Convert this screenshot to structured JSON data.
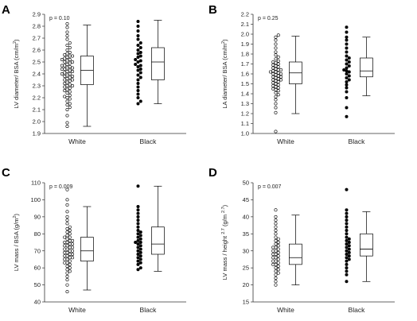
{
  "chart_data": [
    {
      "panel": "A",
      "type": "scatter",
      "ylabel_main": "LV diameter/ BSA (cm/m",
      "ylabel_sup": "2",
      "ylabel_end": ")",
      "pvalue": "p = 0.10",
      "categories": [
        "White",
        "Black"
      ],
      "ylim": [
        1.9,
        2.9
      ],
      "yticks": [
        "1.9",
        "2.0",
        "2.1",
        "2.2",
        "2.3",
        "2.4",
        "2.5",
        "2.6",
        "2.7",
        "2.8",
        "2.9"
      ],
      "series": [
        {
          "group": "White",
          "marker": "open",
          "values": [
            1.96,
            1.99,
            2.05,
            2.1,
            2.12,
            2.14,
            2.15,
            2.17,
            2.19,
            2.2,
            2.21,
            2.22,
            2.24,
            2.25,
            2.26,
            2.27,
            2.28,
            2.29,
            2.3,
            2.3,
            2.31,
            2.32,
            2.33,
            2.34,
            2.35,
            2.35,
            2.36,
            2.37,
            2.38,
            2.38,
            2.39,
            2.4,
            2.4,
            2.41,
            2.42,
            2.42,
            2.43,
            2.44,
            2.44,
            2.45,
            2.45,
            2.46,
            2.47,
            2.47,
            2.48,
            2.49,
            2.5,
            2.5,
            2.51,
            2.52,
            2.52,
            2.53,
            2.54,
            2.55,
            2.55,
            2.56,
            2.57,
            2.58,
            2.6,
            2.62,
            2.64,
            2.66,
            2.69,
            2.72,
            2.75,
            2.79,
            2.82
          ],
          "box": {
            "min": 1.96,
            "q1": 2.31,
            "median": 2.43,
            "q3": 2.55,
            "max": 2.81
          }
        },
        {
          "group": "Black",
          "marker": "filled",
          "values": [
            2.15,
            2.17,
            2.2,
            2.23,
            2.26,
            2.29,
            2.32,
            2.35,
            2.37,
            2.39,
            2.41,
            2.43,
            2.44,
            2.46,
            2.47,
            2.48,
            2.5,
            2.51,
            2.52,
            2.54,
            2.55,
            2.57,
            2.58,
            2.6,
            2.62,
            2.64,
            2.66,
            2.69,
            2.72,
            2.76,
            2.8,
            2.84
          ],
          "box": {
            "min": 2.15,
            "q1": 2.35,
            "median": 2.5,
            "q3": 2.62,
            "max": 2.85
          }
        }
      ]
    },
    {
      "panel": "B",
      "type": "scatter",
      "ylabel_main": "LA diameter/ BSA (cm/m",
      "ylabel_sup": "2",
      "ylabel_end": ")",
      "pvalue": "p = 0.25",
      "categories": [
        "White",
        "Black"
      ],
      "ylim": [
        1.0,
        2.2
      ],
      "yticks": [
        "1.0",
        "1.1",
        "1.2",
        "1.3",
        "1.4",
        "1.5",
        "1.6",
        "1.7",
        "1.8",
        "1.9",
        "2.0",
        "2.1",
        "2.2"
      ],
      "series": [
        {
          "group": "White",
          "marker": "open",
          "values": [
            1.02,
            1.21,
            1.26,
            1.3,
            1.34,
            1.37,
            1.39,
            1.41,
            1.43,
            1.44,
            1.45,
            1.46,
            1.47,
            1.48,
            1.49,
            1.5,
            1.51,
            1.52,
            1.53,
            1.54,
            1.54,
            1.55,
            1.56,
            1.57,
            1.57,
            1.58,
            1.59,
            1.6,
            1.6,
            1.61,
            1.62,
            1.62,
            1.63,
            1.64,
            1.64,
            1.65,
            1.66,
            1.67,
            1.68,
            1.69,
            1.7,
            1.71,
            1.72,
            1.73,
            1.75,
            1.77,
            1.79,
            1.82,
            1.86,
            1.9,
            1.94,
            1.97,
            1.99
          ],
          "box": {
            "min": 1.2,
            "q1": 1.5,
            "median": 1.61,
            "q3": 1.72,
            "max": 1.98
          }
        },
        {
          "group": "Black",
          "marker": "filled",
          "values": [
            1.17,
            1.26,
            1.36,
            1.42,
            1.46,
            1.49,
            1.52,
            1.54,
            1.56,
            1.58,
            1.6,
            1.62,
            1.63,
            1.64,
            1.66,
            1.68,
            1.7,
            1.72,
            1.74,
            1.76,
            1.78,
            1.82,
            1.86,
            1.9,
            1.94,
            1.97,
            2.02,
            2.07
          ],
          "box": {
            "min": 1.38,
            "q1": 1.57,
            "median": 1.63,
            "q3": 1.76,
            "max": 1.97
          }
        }
      ]
    },
    {
      "panel": "C",
      "type": "scatter",
      "ylabel_main": "LV mass / BSA (g/m",
      "ylabel_sup": "2",
      "ylabel_end": ")",
      "pvalue": "p = 0.009",
      "categories": [
        "White",
        "Black"
      ],
      "ylim": [
        40,
        110
      ],
      "yticks": [
        "40",
        "50",
        "60",
        "70",
        "80",
        "90",
        "100",
        "110"
      ],
      "series": [
        {
          "group": "White",
          "marker": "open",
          "values": [
            46,
            50,
            53,
            55,
            57,
            58,
            59,
            60,
            61,
            62,
            63,
            63,
            64,
            65,
            65,
            66,
            66,
            67,
            67,
            68,
            68,
            69,
            69,
            70,
            70,
            71,
            71,
            72,
            72,
            73,
            73,
            74,
            74,
            75,
            75,
            76,
            76,
            77,
            78,
            78,
            79,
            80,
            81,
            82,
            83,
            84,
            86,
            88,
            90,
            93,
            97,
            100,
            106
          ],
          "box": {
            "min": 47,
            "q1": 64,
            "median": 70,
            "q3": 78,
            "max": 96
          }
        },
        {
          "group": "Black",
          "marker": "filled",
          "values": [
            59,
            60,
            62,
            63,
            64,
            65,
            66,
            67,
            68,
            69,
            70,
            71,
            72,
            73,
            74,
            75,
            75,
            76,
            77,
            78,
            79,
            80,
            81,
            82,
            84,
            86,
            88,
            90,
            92,
            94,
            96,
            108
          ],
          "box": {
            "min": 58,
            "q1": 68,
            "median": 74,
            "q3": 84,
            "max": 108
          }
        }
      ]
    },
    {
      "panel": "D",
      "type": "scatter",
      "ylabel_main": "LV mass / height ",
      "ylabel_sup": "2.7",
      "ylabel_end": " (g/m ",
      "ylabel_sup2": "2.7",
      "ylabel_end2": ")",
      "pvalue": "p = 0.007",
      "categories": [
        "White",
        "Black"
      ],
      "ylim": [
        15,
        50
      ],
      "yticks": [
        "15",
        "20",
        "25",
        "30",
        "35",
        "40",
        "45",
        "50"
      ],
      "series": [
        {
          "group": "White",
          "marker": "open",
          "values": [
            20,
            21,
            22,
            23,
            23.5,
            24,
            24.5,
            25,
            25.5,
            26,
            26,
            26.5,
            27,
            27,
            27.5,
            28,
            28,
            28.5,
            29,
            29,
            29.5,
            30,
            30,
            30.5,
            31,
            31,
            31.5,
            32,
            32.5,
            33,
            33.5,
            34,
            35,
            36,
            37,
            38,
            39,
            40,
            42
          ],
          "box": {
            "min": 20,
            "q1": 26,
            "median": 28,
            "q3": 32,
            "max": 40.5
          }
        },
        {
          "group": "Black",
          "marker": "filled",
          "values": [
            21,
            23,
            24,
            25,
            26,
            27,
            27.5,
            28,
            28.5,
            29,
            29.5,
            30,
            30.5,
            31,
            31.5,
            32,
            32.5,
            33,
            33.5,
            34,
            35,
            36,
            37,
            38,
            39,
            40,
            41,
            42,
            48
          ],
          "box": {
            "min": 21,
            "q1": 28.5,
            "median": 30.5,
            "q3": 35,
            "max": 41.5
          }
        }
      ]
    }
  ]
}
